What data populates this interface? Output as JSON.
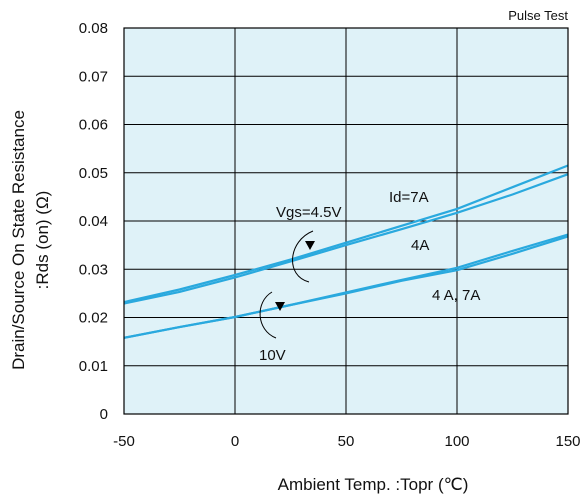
{
  "chart_data": {
    "type": "line",
    "note": "Pulse Test",
    "xlabel": "Ambient Temp. :Topr (℃)",
    "ylabel_line1": "Drain/Source On State Resistance",
    "ylabel_line2": ":Rds (on) (Ω)",
    "xlim": [
      -50,
      150
    ],
    "ylim": [
      0,
      0.08
    ],
    "xticks": [
      "-50",
      "0",
      "50",
      "100",
      "150"
    ],
    "yticks": [
      "0",
      "0.01",
      "0.02",
      "0.03",
      "0.04",
      "0.05",
      "0.06",
      "0.07",
      "0.08"
    ],
    "grid": true,
    "background_color": "#dff2f8",
    "line_color": "#2aa9de",
    "series": [
      {
        "x": [
          -50,
          -25,
          0,
          25,
          50,
          75,
          100,
          125,
          150
        ],
        "y": [
          0.0232,
          0.0258,
          0.0288,
          0.032,
          0.0355,
          0.039,
          0.0425,
          0.047,
          0.0515
        ]
      },
      {
        "x": [
          -50,
          -25,
          0,
          25,
          50,
          75,
          100,
          125,
          150
        ],
        "y": [
          0.0229,
          0.0253,
          0.0283,
          0.0316,
          0.035,
          0.0383,
          0.0417,
          0.0455,
          0.0497
        ]
      },
      {
        "x": [
          -50,
          -25,
          0,
          25,
          50,
          75,
          100,
          125,
          150
        ],
        "y": [
          0.0158,
          0.018,
          0.0201,
          0.0226,
          0.0252,
          0.0278,
          0.0303,
          0.0338,
          0.0372
        ]
      },
      {
        "x": [
          -50,
          -25,
          0,
          25,
          50,
          75,
          100,
          125,
          150
        ],
        "y": [
          0.0158,
          0.018,
          0.0201,
          0.0226,
          0.025,
          0.0276,
          0.0298,
          0.0332,
          0.0368
        ]
      }
    ],
    "annotations": {
      "id7a": "Id=7A",
      "vgs45": "Vgs=4.5V",
      "a4": "4A",
      "a47": "4 A, 7A",
      "v10": "10V"
    }
  }
}
